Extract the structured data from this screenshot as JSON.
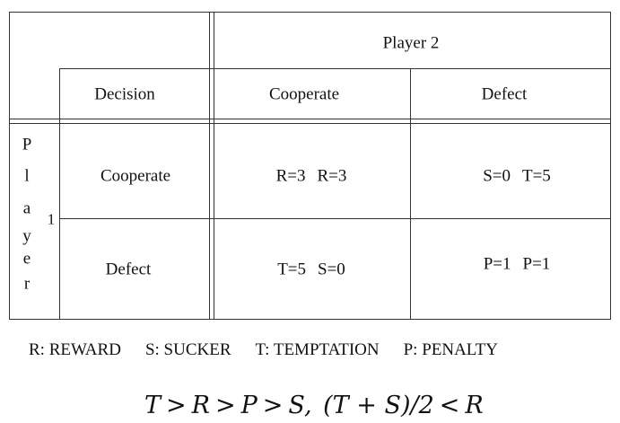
{
  "table": {
    "column_player_label": "Player 2",
    "decision_header": "Decision",
    "column_headers": [
      "Cooperate",
      "Defect"
    ],
    "row_player_letters": [
      "P",
      "l",
      "a",
      "y",
      "e",
      "r"
    ],
    "row_player_number": "1",
    "rows": [
      {
        "label": "Cooperate",
        "cells": [
          {
            "p1": "R=3",
            "p2": "R=3"
          },
          {
            "p1": "S=0",
            "p2": "T=5"
          }
        ]
      },
      {
        "label": "Defect",
        "cells": [
          {
            "p1": "T=5",
            "p2": "S=0"
          },
          {
            "p1": "P=1",
            "p2": "P=1"
          }
        ]
      }
    ]
  },
  "legend": [
    "R: REWARD",
    "S: SUCKER",
    "T: TEMPTATION",
    "P: PENALTY"
  ],
  "formula": {
    "t": "T",
    "gt": ">",
    "r": "R",
    "p": "P",
    "s": "S,",
    "fraction": "(T + S)/2",
    "lt": "<",
    "r2": "R"
  }
}
